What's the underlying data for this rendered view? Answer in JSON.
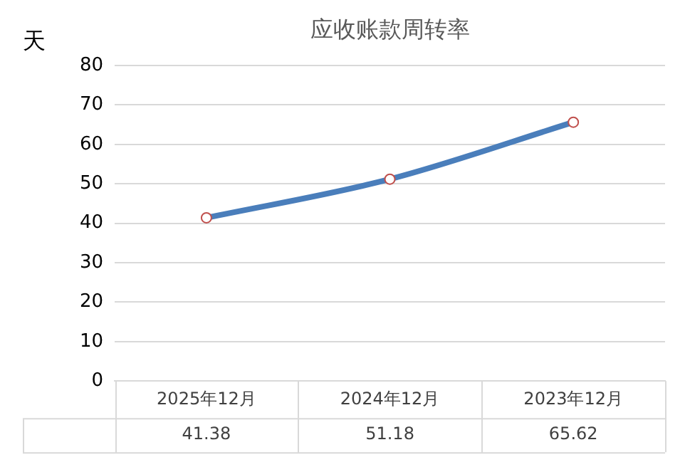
{
  "chart_data": {
    "type": "line",
    "title": "应收账款周转率",
    "ylabel": "天",
    "categories": [
      "2025年12月",
      "2024年12月",
      "2023年12月"
    ],
    "series": [
      {
        "color": "#4a7ebb",
        "values": [
          41.38,
          51.18,
          65.62
        ]
      }
    ],
    "ylim": [
      0,
      80
    ],
    "yticks": [
      0,
      10,
      20,
      30,
      40,
      50,
      60,
      70,
      80
    ],
    "grid": "y",
    "legend": false,
    "marker": "circle",
    "line_style": "solid",
    "data_labels": true
  }
}
